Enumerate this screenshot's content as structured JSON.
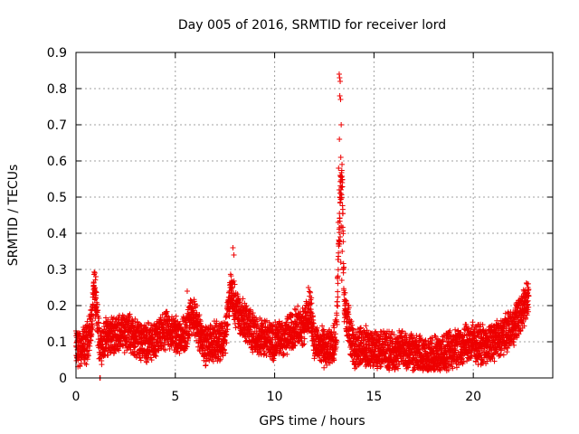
{
  "chart_data": {
    "type": "scatter",
    "title": "Day 005 of 2016, SRMTID for receiver lord",
    "xlabel": "GPS time / hours",
    "ylabel": "SRMTID / TECUs",
    "xlim": [
      0,
      24
    ],
    "ylim": [
      0,
      0.9
    ],
    "xticks": [
      0,
      5,
      10,
      15,
      20
    ],
    "xtick_labels": [
      "0",
      "5",
      "10",
      "15",
      "20"
    ],
    "yticks": [
      0,
      0.1,
      0.2,
      0.3,
      0.4,
      0.5,
      0.6,
      0.7,
      0.8,
      0.9
    ],
    "ytick_labels": [
      "0",
      "0.1",
      "0.2",
      "0.3",
      "0.4",
      "0.5",
      "0.6",
      "0.7",
      "0.8",
      "0.9"
    ],
    "grid": true,
    "marker": "+",
    "color": "#ee0000",
    "series": [
      {
        "name": "SRMTID",
        "sample_interval_hours": 0.01,
        "envelope": {
          "x": [
            0.0,
            0.5,
            0.8,
            0.9,
            1.0,
            1.2,
            1.5,
            2.0,
            2.5,
            3.0,
            3.5,
            4.0,
            4.5,
            5.0,
            5.5,
            5.8,
            6.0,
            6.5,
            7.0,
            7.5,
            7.8,
            8.0,
            8.3,
            8.6,
            9.0,
            9.5,
            10.0,
            10.5,
            11.0,
            11.5,
            11.8,
            12.0,
            12.3,
            12.6,
            12.9,
            13.1,
            13.2,
            13.3,
            13.4,
            13.5,
            13.7,
            14.0,
            14.5,
            15.0,
            15.5,
            16.0,
            16.5,
            17.0,
            17.5,
            18.0,
            18.5,
            19.0,
            19.5,
            20.0,
            20.5,
            21.0,
            21.5,
            22.0,
            22.3,
            22.6,
            22.8
          ],
          "y": [
            0.08,
            0.09,
            0.15,
            0.25,
            0.2,
            0.09,
            0.11,
            0.12,
            0.13,
            0.11,
            0.1,
            0.1,
            0.13,
            0.12,
            0.12,
            0.17,
            0.16,
            0.09,
            0.1,
            0.11,
            0.25,
            0.2,
            0.17,
            0.15,
            0.12,
            0.11,
            0.1,
            0.11,
            0.14,
            0.15,
            0.19,
            0.1,
            0.09,
            0.08,
            0.08,
            0.12,
            0.3,
            0.5,
            0.55,
            0.2,
            0.15,
            0.08,
            0.09,
            0.08,
            0.08,
            0.07,
            0.08,
            0.07,
            0.06,
            0.06,
            0.07,
            0.08,
            0.09,
            0.1,
            0.09,
            0.1,
            0.12,
            0.14,
            0.17,
            0.2,
            0.22
          ]
        },
        "outliers": [
          {
            "x": 0.95,
            "y": 0.29
          },
          {
            "x": 1.0,
            "y": 0.28
          },
          {
            "x": 1.2,
            "y": 0.0
          },
          {
            "x": 1.22,
            "y": 0.0
          },
          {
            "x": 5.6,
            "y": 0.24
          },
          {
            "x": 7.9,
            "y": 0.36
          },
          {
            "x": 7.95,
            "y": 0.34
          },
          {
            "x": 11.7,
            "y": 0.25
          },
          {
            "x": 13.25,
            "y": 0.84
          },
          {
            "x": 13.27,
            "y": 0.83
          },
          {
            "x": 13.3,
            "y": 0.82
          },
          {
            "x": 13.28,
            "y": 0.78
          },
          {
            "x": 13.32,
            "y": 0.77
          },
          {
            "x": 13.35,
            "y": 0.7
          },
          {
            "x": 13.26,
            "y": 0.66
          },
          {
            "x": 13.33,
            "y": 0.61
          },
          {
            "x": 13.22,
            "y": 0.58
          },
          {
            "x": 13.3,
            "y": 0.56
          },
          {
            "x": 13.25,
            "y": 0.52
          },
          {
            "x": 13.28,
            "y": 0.5
          },
          {
            "x": 13.2,
            "y": 0.43
          },
          {
            "x": 13.35,
            "y": 0.42
          },
          {
            "x": 13.3,
            "y": 0.39
          },
          {
            "x": 13.27,
            "y": 0.37
          },
          {
            "x": 13.4,
            "y": 0.35
          },
          {
            "x": 13.33,
            "y": 0.32
          },
          {
            "x": 13.45,
            "y": 0.3
          },
          {
            "x": 13.38,
            "y": 0.27
          },
          {
            "x": 22.7,
            "y": 0.26
          },
          {
            "x": 22.75,
            "y": 0.25
          }
        ]
      }
    ]
  }
}
